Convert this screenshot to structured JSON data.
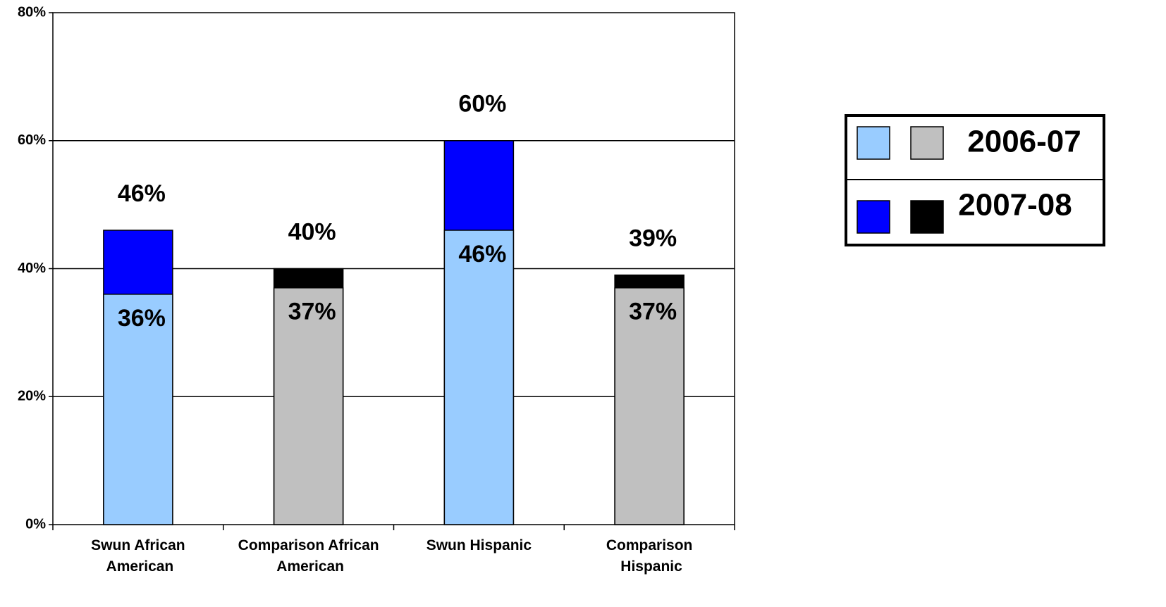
{
  "chart_data": {
    "type": "bar",
    "overlap": true,
    "categories": [
      "Swun African American",
      "Comparison African American",
      "Swun Hispanic",
      "Comparison Hispanic"
    ],
    "series": [
      {
        "name": "2007-08",
        "colors": [
          "#0000ff",
          "#000000",
          "#0000ff",
          "#000000"
        ],
        "values": [
          46,
          40,
          60,
          39
        ],
        "value_labels": [
          "46%",
          "40%",
          "60%",
          "39%"
        ]
      },
      {
        "name": "2006-07",
        "colors": [
          "#99ccff",
          "#c0c0c0",
          "#99ccff",
          "#c0c0c0"
        ],
        "values": [
          36,
          37,
          46,
          37
        ],
        "value_labels": [
          "36%",
          "37%",
          "46%",
          "37%"
        ]
      }
    ],
    "ylim": [
      0,
      80
    ],
    "yticks": [
      {
        "value": 0,
        "label": "0%"
      },
      {
        "value": 20,
        "label": "20%"
      },
      {
        "value": 40,
        "label": "40%"
      },
      {
        "value": 60,
        "label": "60%"
      },
      {
        "value": 80,
        "label": "80%"
      }
    ],
    "grid": true,
    "legend": "right"
  }
}
